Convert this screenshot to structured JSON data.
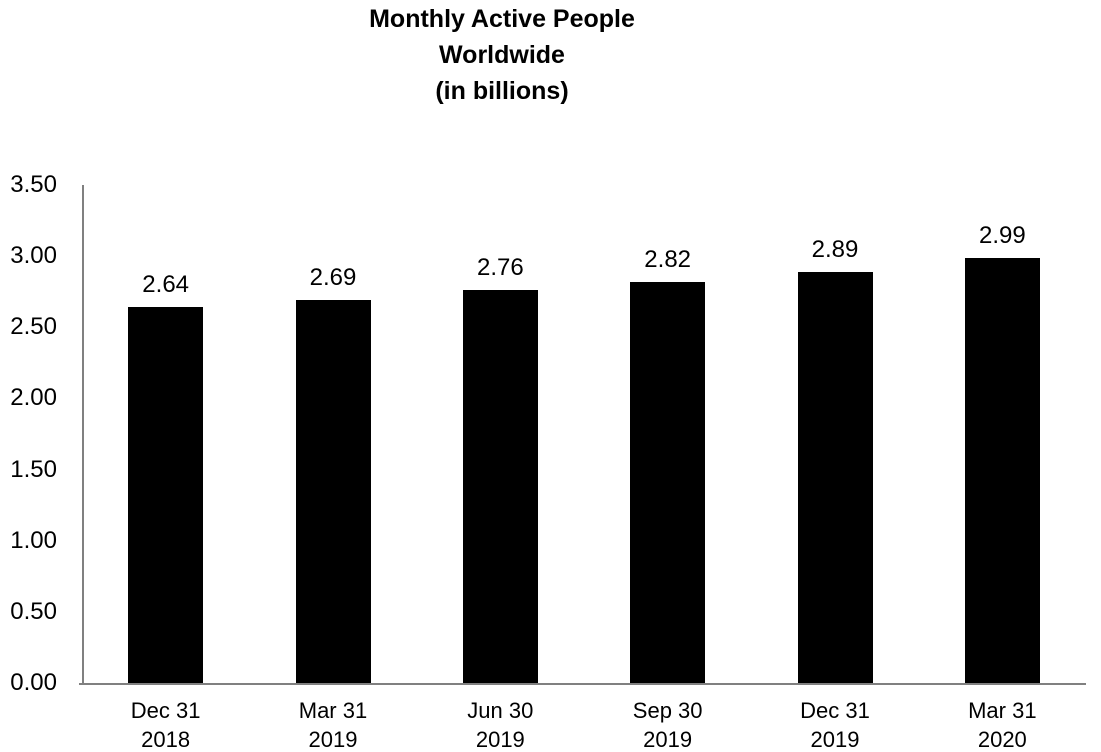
{
  "title": {
    "line1": "Monthly Active People",
    "line2": "Worldwide",
    "line3": "(in billions)"
  },
  "chart_data": {
    "type": "bar",
    "title": "Monthly Active People Worldwide (in billions)",
    "categories": [
      [
        "Dec 31",
        "2018"
      ],
      [
        "Mar 31",
        "2019"
      ],
      [
        "Jun 30",
        "2019"
      ],
      [
        "Sep 30",
        "2019"
      ],
      [
        "Dec 31",
        "2019"
      ],
      [
        "Mar 31",
        "2020"
      ]
    ],
    "values": [
      2.64,
      2.69,
      2.76,
      2.82,
      2.89,
      2.99
    ],
    "value_labels": [
      "2.64",
      "2.69",
      "2.76",
      "2.82",
      "2.89",
      "2.99"
    ],
    "y_ticks": [
      "0.00",
      "0.50",
      "1.00",
      "1.50",
      "2.00",
      "2.50",
      "3.00",
      "3.50"
    ],
    "ylim": [
      0,
      3.5
    ],
    "xlabel": "",
    "ylabel": "",
    "grid": "off",
    "legend": "none",
    "bar_color": "#000000",
    "axis_color": "#808080",
    "text_color": "#000000"
  }
}
